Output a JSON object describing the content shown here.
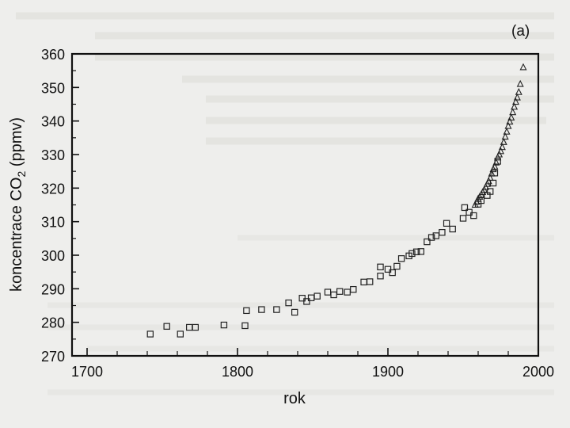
{
  "chart_data": {
    "type": "scatter",
    "panel_label": "(a)",
    "title": "",
    "xlabel": "rok",
    "ylabel": "koncentrace CO",
    "ylabel_subscript": "2",
    "ylabel_unit": " (ppmv)",
    "xlim": [
      1690,
      2000
    ],
    "ylim": [
      270,
      360
    ],
    "x_ticks": [
      1700,
      1800,
      1900,
      2000
    ],
    "y_ticks": [
      270,
      280,
      290,
      300,
      310,
      320,
      330,
      340,
      350,
      360
    ],
    "grid": false,
    "series": [
      {
        "marker": "square",
        "points": [
          [
            1742,
            276.5
          ],
          [
            1753,
            278.8
          ],
          [
            1762,
            276.5
          ],
          [
            1768,
            278.5
          ],
          [
            1772,
            278.5
          ],
          [
            1791,
            279.2
          ],
          [
            1805,
            279.0
          ],
          [
            1806,
            283.5
          ],
          [
            1816,
            283.8
          ],
          [
            1826,
            283.8
          ],
          [
            1834,
            285.8
          ],
          [
            1838,
            283.0
          ],
          [
            1843,
            287.2
          ],
          [
            1846,
            286.2
          ],
          [
            1849,
            287.3
          ],
          [
            1853,
            287.8
          ],
          [
            1860,
            289.0
          ],
          [
            1864,
            288.2
          ],
          [
            1868,
            289.2
          ],
          [
            1873,
            289.0
          ],
          [
            1877,
            289.8
          ],
          [
            1884,
            292.0
          ],
          [
            1888,
            292.1
          ],
          [
            1895,
            293.8
          ],
          [
            1895,
            296.5
          ],
          [
            1900,
            295.8
          ],
          [
            1903,
            294.8
          ],
          [
            1906,
            296.7
          ],
          [
            1909,
            299.0
          ],
          [
            1914,
            299.8
          ],
          [
            1916,
            300.5
          ],
          [
            1919,
            301.0
          ],
          [
            1922,
            301.1
          ],
          [
            1926,
            304.0
          ],
          [
            1929,
            305.3
          ],
          [
            1932,
            305.8
          ],
          [
            1936,
            306.8
          ],
          [
            1939,
            309.5
          ],
          [
            1943,
            307.8
          ],
          [
            1950,
            311.0
          ],
          [
            1951,
            314.2
          ],
          [
            1954,
            312.8
          ],
          [
            1957,
            311.8
          ],
          [
            1960,
            315.2
          ],
          [
            1962,
            316.3
          ],
          [
            1966,
            317.8
          ],
          [
            1968,
            319.0
          ],
          [
            1970,
            321.5
          ],
          [
            1971,
            324.5
          ],
          [
            1973,
            328.0
          ]
        ]
      },
      {
        "marker": "triangle",
        "points": [
          [
            1958,
            315.0
          ],
          [
            1959,
            315.9
          ],
          [
            1960,
            316.8
          ],
          [
            1961,
            317.4
          ],
          [
            1962,
            318.0
          ],
          [
            1963,
            318.8
          ],
          [
            1964,
            319.5
          ],
          [
            1965,
            320.3
          ],
          [
            1966,
            321.2
          ],
          [
            1967,
            322.0
          ],
          [
            1968,
            323.0
          ],
          [
            1969,
            324.3
          ],
          [
            1970,
            325.6
          ],
          [
            1971,
            326.4
          ],
          [
            1972,
            327.6
          ],
          [
            1973,
            329.1
          ],
          [
            1974,
            330.0
          ],
          [
            1975,
            331.0
          ],
          [
            1976,
            332.2
          ],
          [
            1977,
            333.7
          ],
          [
            1978,
            335.3
          ],
          [
            1979,
            336.8
          ],
          [
            1980,
            338.5
          ],
          [
            1981,
            339.8
          ],
          [
            1982,
            341.0
          ],
          [
            1983,
            342.6
          ],
          [
            1984,
            344.2
          ],
          [
            1985,
            345.7
          ],
          [
            1986,
            347.0
          ],
          [
            1987,
            348.6
          ],
          [
            1988,
            351.0
          ],
          [
            1990,
            356.0
          ]
        ]
      }
    ]
  }
}
